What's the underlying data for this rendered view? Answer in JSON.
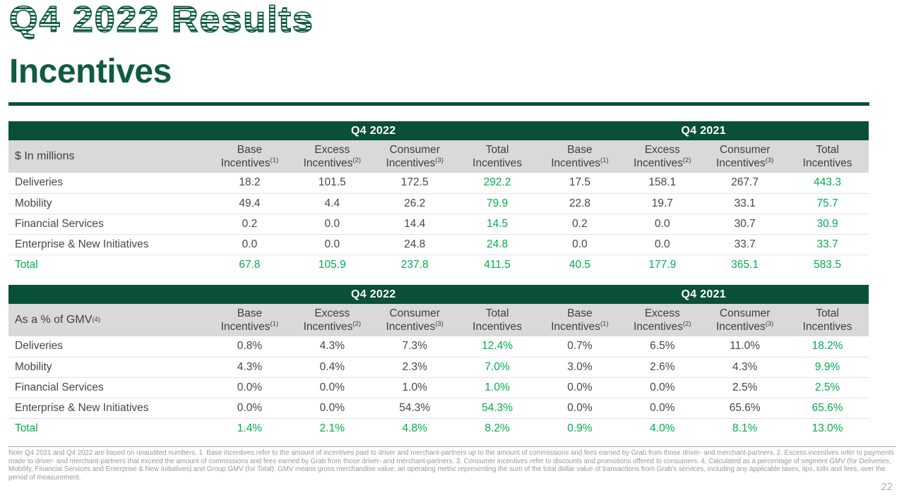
{
  "page": {
    "title": "Q4 2022 Results",
    "subtitle": "Incentives",
    "page_number": "22",
    "footnote": "Note Q4 2021 and Q4 2022 are based on unaudited numbers. 1. Base incentives refer to the amount of incentives paid to driver and merchant-partners up to the amount of commissions and fees earned by Grab from those driver- and merchant-partners. 2. Excess incentives refer to payments made to driver- and merchant-partners that exceed the amount of commissions and fees earned by Grab from those driver- and merchant-partners. 3. Consumer incentives refer to discounts and promotions offered to consumers. 4. Calculated as a percentage of segment GMV (for Deliveries, Mobility, Financial Services and Enterprise & New Initiatives) and Group GMV (for Total). GMV means gross merchandise value, an operating metric representing the sum of the total dollar value of transactions from Grab's services, including any applicable taxes, tips, tolls and fees, over the period of measurement."
  },
  "colors": {
    "band_green": "#0A4F37",
    "accent_green": "#00AE4F",
    "title_green": "#0E5C40",
    "header_gray": "#D9D9D9",
    "text_dark": "#474747"
  },
  "period_headers": [
    "Q4 2022",
    "Q4 2021"
  ],
  "column_headers": [
    {
      "line1": "Base",
      "line2": "Incentives",
      "sup": "(1)"
    },
    {
      "line1": "Excess",
      "line2": "Incentives",
      "sup": "(2)"
    },
    {
      "line1": "Consumer",
      "line2": "Incentives",
      "sup": "(3)"
    },
    {
      "line1": "Total",
      "line2": "Incentives",
      "sup": ""
    }
  ],
  "tables": [
    {
      "unit_label": "$ In millions",
      "unit_sup": "",
      "rows": [
        {
          "label": "Deliveries",
          "is_total": false,
          "values": [
            "18.2",
            "101.5",
            "172.5",
            "292.2",
            "17.5",
            "158.1",
            "267.7",
            "443.3"
          ]
        },
        {
          "label": "Mobility",
          "is_total": false,
          "values": [
            "49.4",
            "4.4",
            "26.2",
            "79.9",
            "22.8",
            "19.7",
            "33.1",
            "75.7"
          ]
        },
        {
          "label": "Financial Services",
          "is_total": false,
          "values": [
            "0.2",
            "0.0",
            "14.4",
            "14.5",
            "0.2",
            "0.0",
            "30.7",
            "30.9"
          ]
        },
        {
          "label": "Enterprise & New Initiatives",
          "is_total": false,
          "values": [
            "0.0",
            "0.0",
            "24.8",
            "24.8",
            "0.0",
            "0.0",
            "33.7",
            "33.7"
          ]
        },
        {
          "label": "Total",
          "is_total": true,
          "values": [
            "67.8",
            "105.9",
            "237.8",
            "411.5",
            "40.5",
            "177.9",
            "365.1",
            "583.5"
          ]
        }
      ]
    },
    {
      "unit_label": "As a % of GMV",
      "unit_sup": "(4)",
      "rows": [
        {
          "label": "Deliveries",
          "is_total": false,
          "values": [
            "0.8%",
            "4.3%",
            "7.3%",
            "12.4%",
            "0.7%",
            "6.5%",
            "11.0%",
            "18.2%"
          ]
        },
        {
          "label": "Mobility",
          "is_total": false,
          "values": [
            "4.3%",
            "0.4%",
            "2.3%",
            "7.0%",
            "3.0%",
            "2.6%",
            "4.3%",
            "9.9%"
          ]
        },
        {
          "label": "Financial Services",
          "is_total": false,
          "values": [
            "0.0%",
            "0.0%",
            "1.0%",
            "1.0%",
            "0.0%",
            "0.0%",
            "2.5%",
            "2.5%"
          ]
        },
        {
          "label": "Enterprise & New Initiatives",
          "is_total": false,
          "values": [
            "0.0%",
            "0.0%",
            "54.3%",
            "54.3%",
            "0.0%",
            "0.0%",
            "65.6%",
            "65.6%"
          ]
        },
        {
          "label": "Total",
          "is_total": true,
          "values": [
            "1.4%",
            "2.1%",
            "4.8%",
            "8.2%",
            "0.9%",
            "4.0%",
            "8.1%",
            "13.0%"
          ]
        }
      ]
    }
  ]
}
